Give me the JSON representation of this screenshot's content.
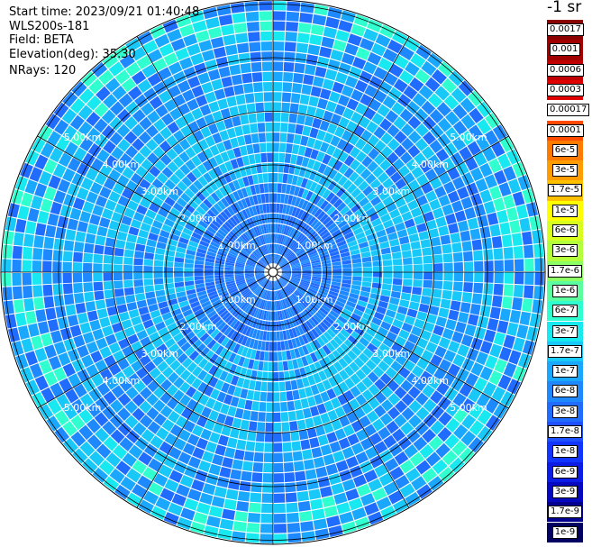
{
  "info": {
    "start_time": "Start time: 2023/09/21 01:40:48",
    "instrument": "WLS200s-181",
    "field": "Field: BETA",
    "elevation": "Elevation(deg): 35.30",
    "nrays": "NRays: 120"
  },
  "ppi": {
    "range_rings": [
      "1.00km",
      "2.00km",
      "3.00km",
      "4.00km",
      "5.00km"
    ],
    "n_rays": 120
  },
  "colorbar": {
    "unit": "-1 sr",
    "levels": [
      {
        "label": "0.0017",
        "color": "#8b0000"
      },
      {
        "label": "0.001",
        "color": "#a00000"
      },
      {
        "label": "0.0006",
        "color": "#c00000"
      },
      {
        "label": "0.0003",
        "color": "#e00000"
      },
      {
        "label": "0.00017",
        "color": "#ffffff"
      },
      {
        "label": "0.0001",
        "color": "#ff4a00"
      },
      {
        "label": "6e-5",
        "color": "#ff7a00"
      },
      {
        "label": "3e-5",
        "color": "#ff9d00"
      },
      {
        "label": "1.7e-5",
        "color": "#ffc000"
      },
      {
        "label": "1e-5",
        "color": "#ffff00"
      },
      {
        "label": "6e-6",
        "color": "#d8ff1e"
      },
      {
        "label": "3e-6",
        "color": "#b4ff3c"
      },
      {
        "label": "1.7e-6",
        "color": "#8cff64"
      },
      {
        "label": "1e-6",
        "color": "#5cffa0"
      },
      {
        "label": "6e-7",
        "color": "#30ffd0"
      },
      {
        "label": "3e-7",
        "color": "#18e8f0"
      },
      {
        "label": "1.7e-7",
        "color": "#18c8f8"
      },
      {
        "label": "1e-7",
        "color": "#1aa8ff"
      },
      {
        "label": "6e-8",
        "color": "#1e88ff"
      },
      {
        "label": "3e-8",
        "color": "#1f6cff"
      },
      {
        "label": "1.7e-8",
        "color": "#1f50ff"
      },
      {
        "label": "1e-8",
        "color": "#1234ff"
      },
      {
        "label": "6e-9",
        "color": "#0a1ce6"
      },
      {
        "label": "3e-9",
        "color": "#0608c0"
      },
      {
        "label": "1.7e-9",
        "color": "#040090"
      },
      {
        "label": "1e-9",
        "color": "#020060"
      }
    ]
  }
}
